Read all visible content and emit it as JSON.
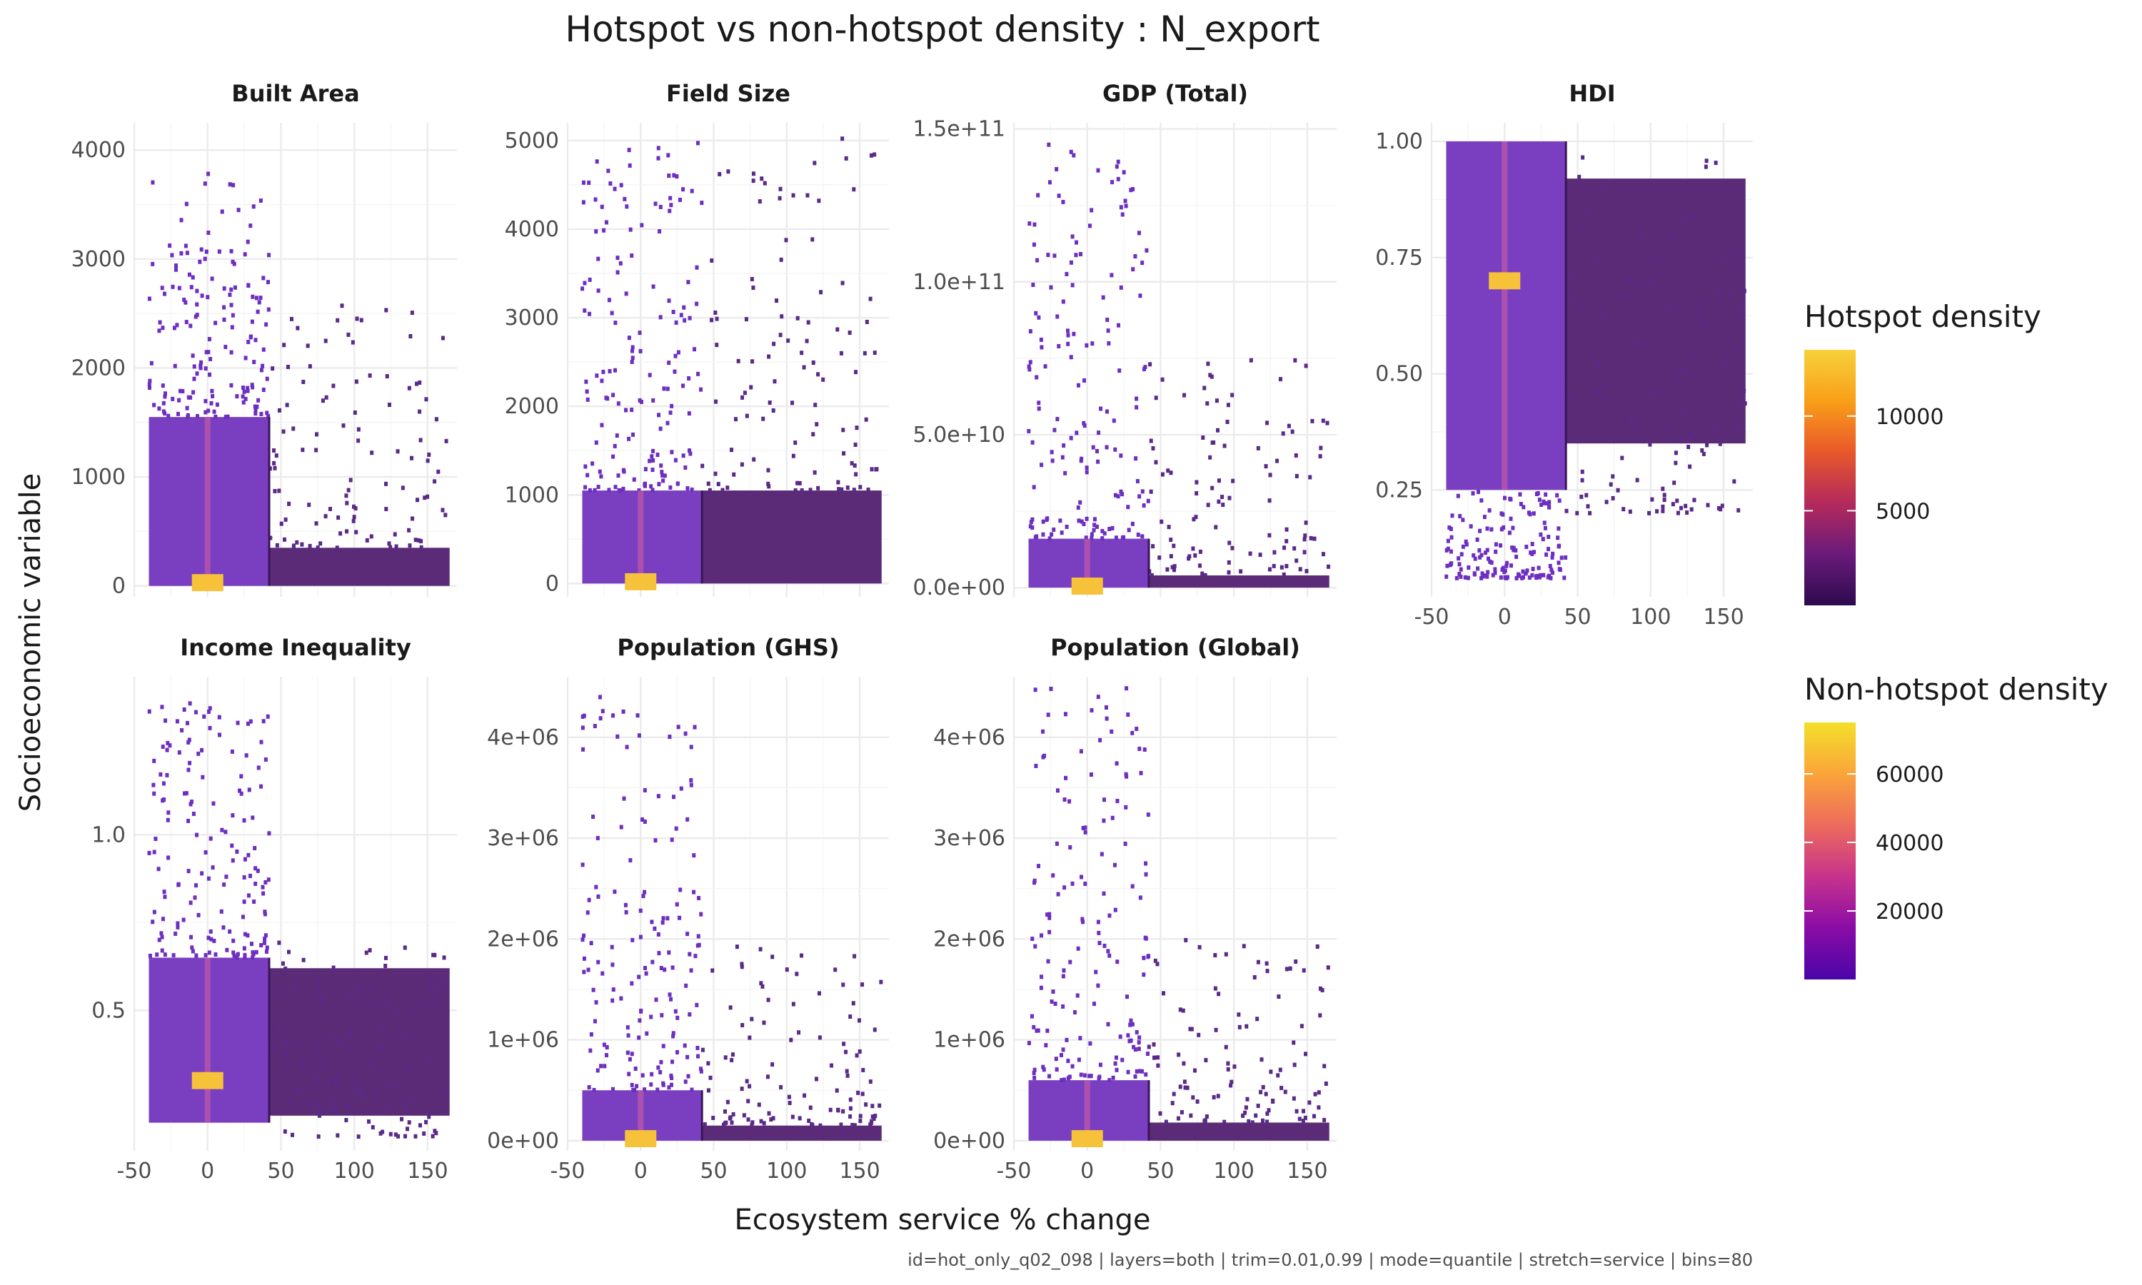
{
  "chart_data": {
    "type": "heatmap",
    "title": "Hotspot vs non-hotspot density : N_export",
    "xlabel": "Ecosystem service % change",
    "ylabel": "Socioeconomic variable",
    "caption": "id=hot_only_q02_098 | layers=both | trim=0.01,0.99 | mode=quantile | stretch=service | bins=80",
    "xlim": [
      -50,
      170
    ],
    "x_ticks": [
      -50,
      0,
      50,
      100,
      150
    ],
    "x_tick_labels": [
      "-50",
      "0",
      "50",
      "100",
      "150"
    ],
    "threshold_x": 42,
    "grid": true,
    "legends": [
      {
        "title": "Hotspot density",
        "ticks": [
          5000,
          10000
        ],
        "tick_labels": [
          "5000",
          "10000"
        ],
        "range": [
          0,
          13500
        ],
        "colors": [
          "#2c0a4e",
          "#6a1b7a",
          "#b42a5c",
          "#e8582a",
          "#f99f18",
          "#f6d13a"
        ]
      },
      {
        "title": "Non-hotspot density",
        "ticks": [
          20000,
          40000,
          60000
        ],
        "tick_labels": [
          "20000",
          "40000",
          "60000"
        ],
        "range": [
          0,
          75000
        ],
        "colors": [
          "#4a05a8",
          "#8a0ca6",
          "#c7338c",
          "#ec6b5c",
          "#fba43a",
          "#f3e02a"
        ]
      }
    ],
    "panels": [
      {
        "name": "Built Area",
        "ylim": [
          -100,
          4250
        ],
        "y_ticks": [
          0,
          1000,
          2000,
          3000,
          4000
        ],
        "y_tick_labels": [
          "0",
          "1000",
          "2000",
          "3000",
          "4000"
        ],
        "non_hotspot_bulk": {
          "x": [
            -40,
            42
          ],
          "y": [
            0,
            1550
          ]
        },
        "non_hotspot_scatter": {
          "x": [
            -40,
            42
          ],
          "y": [
            1550,
            3800
          ]
        },
        "hotspot_bulk": {
          "x": [
            42,
            165
          ],
          "y": [
            0,
            350
          ]
        },
        "hotspot_scatter": {
          "x": [
            42,
            165
          ],
          "y": [
            350,
            2600
          ]
        },
        "peak": {
          "x": 0,
          "y": 30
        }
      },
      {
        "name": "Field Size",
        "ylim": [
          -150,
          5200
        ],
        "y_ticks": [
          0,
          1000,
          2000,
          3000,
          4000,
          5000
        ],
        "y_tick_labels": [
          "0",
          "1000",
          "2000",
          "3000",
          "4000",
          "5000"
        ],
        "non_hotspot_bulk": {
          "x": [
            -40,
            42
          ],
          "y": [
            0,
            1050
          ]
        },
        "non_hotspot_scatter": {
          "x": [
            -40,
            42
          ],
          "y": [
            1050,
            5050
          ]
        },
        "hotspot_bulk": {
          "x": [
            42,
            165
          ],
          "y": [
            0,
            1050
          ]
        },
        "hotspot_scatter": {
          "x": [
            42,
            165
          ],
          "y": [
            1050,
            5050
          ]
        },
        "peak": {
          "x": 0,
          "y": 20
        }
      },
      {
        "name": "GDP (Total)",
        "ylim": [
          -3000000000.0,
          152000000000.0
        ],
        "y_ticks": [
          0,
          50000000000.0,
          100000000000.0,
          150000000000.0
        ],
        "y_tick_labels": [
          "0.0e+00",
          "5.0e+10",
          "1.0e+11",
          "1.5e+11"
        ],
        "non_hotspot_bulk": {
          "x": [
            -40,
            42
          ],
          "y": [
            0,
            16000000000.0
          ]
        },
        "non_hotspot_scatter": {
          "x": [
            -40,
            42
          ],
          "y": [
            16000000000.0,
            145000000000.0
          ]
        },
        "hotspot_bulk": {
          "x": [
            42,
            165
          ],
          "y": [
            0,
            4000000000.0
          ]
        },
        "hotspot_scatter": {
          "x": [
            42,
            165
          ],
          "y": [
            4000000000.0,
            75000000000.0
          ]
        },
        "peak": {
          "x": 0,
          "y": 500000000.0
        }
      },
      {
        "name": "HDI",
        "ylim": [
          0.02,
          1.04
        ],
        "y_ticks": [
          0.25,
          0.5,
          0.75,
          1.0
        ],
        "y_tick_labels": [
          "0.25",
          "0.50",
          "0.75",
          "1.00"
        ],
        "non_hotspot_bulk": {
          "x": [
            -40,
            42
          ],
          "y": [
            0.25,
            1.0
          ]
        },
        "non_hotspot_scatter": {
          "x": [
            -40,
            42
          ],
          "y": [
            0.06,
            0.25
          ]
        },
        "hotspot_bulk": {
          "x": [
            42,
            165
          ],
          "y": [
            0.35,
            0.92
          ]
        },
        "hotspot_scatter": {
          "x": [
            42,
            165
          ],
          "y": [
            0.2,
            0.98
          ]
        },
        "peak": {
          "x": 0,
          "y": 0.7
        }
      },
      {
        "name": "Income Inequality",
        "ylim": [
          0.1,
          1.45
        ],
        "y_ticks": [
          0.5,
          1.0
        ],
        "y_tick_labels": [
          "0.5",
          "1.0"
        ],
        "non_hotspot_bulk": {
          "x": [
            -40,
            42
          ],
          "y": [
            0.18,
            0.65
          ]
        },
        "non_hotspot_scatter": {
          "x": [
            -40,
            42
          ],
          "y": [
            0.65,
            1.38
          ]
        },
        "hotspot_bulk": {
          "x": [
            42,
            165
          ],
          "y": [
            0.2,
            0.62
          ]
        },
        "hotspot_scatter": {
          "x": [
            42,
            165
          ],
          "y": [
            0.14,
            0.7
          ]
        },
        "peak": {
          "x": 0,
          "y": 0.3
        }
      },
      {
        "name": "Population (GHS)",
        "ylim": [
          -100000.0,
          4600000.0
        ],
        "y_ticks": [
          0,
          1000000.0,
          2000000.0,
          3000000.0,
          4000000.0
        ],
        "y_tick_labels": [
          "0e+00",
          "1e+06",
          "2e+06",
          "3e+06",
          "4e+06"
        ],
        "non_hotspot_bulk": {
          "x": [
            -40,
            42
          ],
          "y": [
            0,
            500000.0
          ]
        },
        "non_hotspot_scatter": {
          "x": [
            -40,
            42
          ],
          "y": [
            500000.0,
            4400000.0
          ]
        },
        "hotspot_bulk": {
          "x": [
            42,
            165
          ],
          "y": [
            0,
            150000.0
          ]
        },
        "hotspot_scatter": {
          "x": [
            42,
            165
          ],
          "y": [
            150000.0,
            2000000.0
          ]
        },
        "peak": {
          "x": 0,
          "y": 20000.0
        }
      },
      {
        "name": "Population (Global)",
        "ylim": [
          -100000.0,
          4600000.0
        ],
        "y_ticks": [
          0,
          1000000.0,
          2000000.0,
          3000000.0,
          4000000.0
        ],
        "y_tick_labels": [
          "0e+00",
          "1e+06",
          "2e+06",
          "3e+06",
          "4e+06"
        ],
        "non_hotspot_bulk": {
          "x": [
            -40,
            42
          ],
          "y": [
            0,
            600000.0
          ]
        },
        "non_hotspot_scatter": {
          "x": [
            -40,
            42
          ],
          "y": [
            600000.0,
            4500000.0
          ]
        },
        "hotspot_bulk": {
          "x": [
            42,
            165
          ],
          "y": [
            0,
            180000.0
          ]
        },
        "hotspot_scatter": {
          "x": [
            42,
            165
          ],
          "y": [
            180000.0,
            2000000.0
          ]
        },
        "peak": {
          "x": 0,
          "y": 20000.0
        }
      }
    ]
  }
}
